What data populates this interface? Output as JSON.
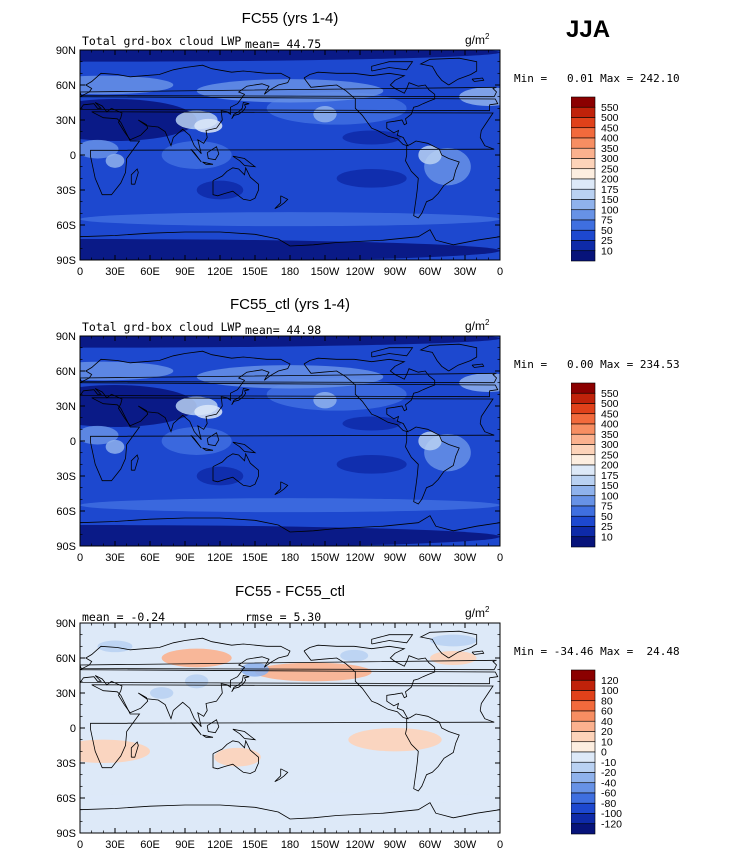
{
  "season": "JJA",
  "lat_ticks": [
    "90N",
    "60N",
    "30N",
    "0",
    "30S",
    "60S",
    "90S"
  ],
  "lon_ticks": [
    "0",
    "30E",
    "60E",
    "90E",
    "120E",
    "150E",
    "180",
    "150W",
    "120W",
    "90W",
    "60W",
    "30W",
    "0"
  ],
  "panels": [
    {
      "title": "FC55 (yrs 1-4)",
      "subtitle_left": "Total grd-box cloud LWP",
      "subtitle_mid": "mean=  44.75",
      "units_base": "g/m",
      "units_exp": "2",
      "stats": "Min =   0.01 Max = 242.10",
      "colorbar_labels": [
        "550",
        "500",
        "450",
        "400",
        "350",
        "300",
        "250",
        "200",
        "175",
        "150",
        "100",
        "75",
        "50",
        "25",
        "10"
      ],
      "colorbar_colors": [
        "#8b0000",
        "#c0220a",
        "#e0411a",
        "#f26a3c",
        "#f78e62",
        "#fbb18e",
        "#fdd3b9",
        "#fdeee0",
        "#dde9f8",
        "#b9d1f2",
        "#8fb2ec",
        "#6792e6",
        "#3f6fe0",
        "#1d48cf",
        "#0e2aa8",
        "#07137a"
      ]
    },
    {
      "title": "FC55_ctl (yrs 1-4)",
      "subtitle_left": "Total grd-box cloud LWP",
      "subtitle_mid": "mean=  44.98",
      "units_base": "g/m",
      "units_exp": "2",
      "stats": "Min =   0.00 Max = 234.53",
      "colorbar_labels": [
        "550",
        "500",
        "450",
        "400",
        "350",
        "300",
        "250",
        "200",
        "175",
        "150",
        "100",
        "75",
        "50",
        "25",
        "10"
      ],
      "colorbar_colors": [
        "#8b0000",
        "#c0220a",
        "#e0411a",
        "#f26a3c",
        "#f78e62",
        "#fbb18e",
        "#fdd3b9",
        "#fdeee0",
        "#dde9f8",
        "#b9d1f2",
        "#8fb2ec",
        "#6792e6",
        "#3f6fe0",
        "#1d48cf",
        "#0e2aa8",
        "#07137a"
      ]
    },
    {
      "title": "FC55 - FC55_ctl",
      "subtitle_left": "mean =   -0.24",
      "subtitle_mid": "rmse =   5.30",
      "units_base": "g/m",
      "units_exp": "2",
      "stats": "Min = -34.46 Max =  24.48",
      "colorbar_labels": [
        "120",
        "100",
        "80",
        "60",
        "40",
        "20",
        "10",
        "0",
        "-10",
        "-20",
        "-40",
        "-60",
        "-80",
        "-100",
        "-120"
      ],
      "colorbar_colors": [
        "#8b0000",
        "#c0220a",
        "#e0411a",
        "#f26a3c",
        "#f78e62",
        "#fbb18e",
        "#fdd3b9",
        "#fdeee0",
        "#dde9f8",
        "#b9d1f2",
        "#8fb2ec",
        "#6792e6",
        "#3f6fe0",
        "#1d48cf",
        "#0e2aa8",
        "#07137a"
      ]
    }
  ]
}
